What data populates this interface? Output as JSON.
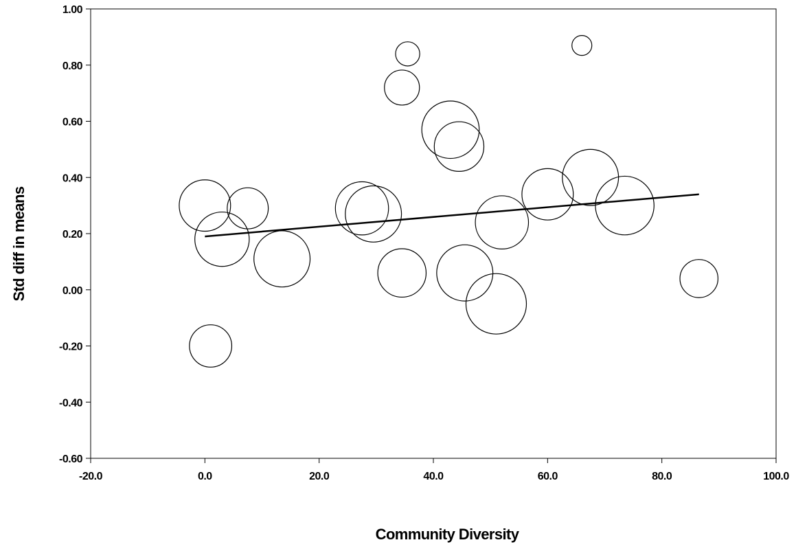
{
  "chart_data": {
    "type": "scatter",
    "title": "",
    "xlabel": "Community Diversity",
    "ylabel": "Std diff in means",
    "xlim": [
      -20,
      100
    ],
    "ylim": [
      -0.6,
      1.0
    ],
    "x_ticks": [
      -20,
      0,
      20,
      40,
      60,
      80,
      100
    ],
    "y_ticks": [
      -0.6,
      -0.4,
      -0.2,
      0.0,
      0.2,
      0.4,
      0.6,
      0.8,
      1.0
    ],
    "x_tick_labels": [
      "-20.0",
      "0.0",
      "20.0",
      "40.0",
      "60.0",
      "80.0",
      "100.0"
    ],
    "y_tick_labels": [
      "-0.60",
      "-0.40",
      "-0.20",
      "0.00",
      "0.20",
      "0.40",
      "0.60",
      "0.80",
      "1.00"
    ],
    "grid": false,
    "legend": "none",
    "marker": "open circle, size proportional to study weight",
    "points": [
      {
        "x": 0.0,
        "y": 0.3,
        "weight": 0.85
      },
      {
        "x": 3.0,
        "y": 0.18,
        "weight": 0.9
      },
      {
        "x": 1.0,
        "y": -0.2,
        "weight": 0.7
      },
      {
        "x": 7.5,
        "y": 0.29,
        "weight": 0.68
      },
      {
        "x": 13.5,
        "y": 0.11,
        "weight": 0.93
      },
      {
        "x": 27.5,
        "y": 0.29,
        "weight": 0.88
      },
      {
        "x": 29.5,
        "y": 0.27,
        "weight": 0.93
      },
      {
        "x": 34.5,
        "y": 0.06,
        "weight": 0.8
      },
      {
        "x": 34.5,
        "y": 0.72,
        "weight": 0.58
      },
      {
        "x": 35.5,
        "y": 0.84,
        "weight": 0.4
      },
      {
        "x": 43.0,
        "y": 0.57,
        "weight": 0.95
      },
      {
        "x": 44.5,
        "y": 0.51,
        "weight": 0.82
      },
      {
        "x": 45.5,
        "y": 0.06,
        "weight": 0.93
      },
      {
        "x": 51.0,
        "y": -0.05,
        "weight": 1.0
      },
      {
        "x": 52.0,
        "y": 0.24,
        "weight": 0.88
      },
      {
        "x": 60.0,
        "y": 0.34,
        "weight": 0.85
      },
      {
        "x": 67.5,
        "y": 0.4,
        "weight": 0.93
      },
      {
        "x": 66.0,
        "y": 0.87,
        "weight": 0.33
      },
      {
        "x": 73.5,
        "y": 0.3,
        "weight": 0.97
      },
      {
        "x": 86.5,
        "y": 0.04,
        "weight": 0.63
      }
    ],
    "regression_line": {
      "x": [
        0.0,
        86.5
      ],
      "y": [
        0.19,
        0.34
      ]
    }
  }
}
